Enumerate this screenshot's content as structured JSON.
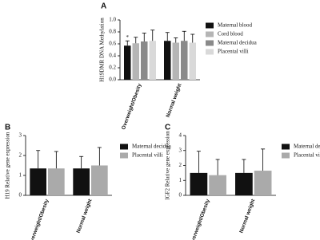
{
  "chart_data": [
    {
      "type": "bar",
      "panel_label": "A",
      "ylabel": "H19DMR DNA Methylation",
      "annotation": "*",
      "categories": [
        "Overweight/Obesity",
        "Normal weight"
      ],
      "series": [
        {
          "name": "Maternal blood",
          "color": "#111111",
          "values": [
            0.57,
            0.65
          ],
          "errors": [
            0.08,
            0.14
          ]
        },
        {
          "name": "Cord blood",
          "color": "#b5b5b5",
          "values": [
            0.61,
            0.62
          ],
          "errors": [
            0.1,
            0.08
          ]
        },
        {
          "name": "Maternal decidua",
          "color": "#8a8a8a",
          "values": [
            0.64,
            0.65
          ],
          "errors": [
            0.14,
            0.16
          ]
        },
        {
          "name": "Placental villi",
          "color": "#d9d9d9",
          "values": [
            0.65,
            0.62
          ],
          "errors": [
            0.18,
            0.14
          ]
        }
      ],
      "ylim": [
        0,
        1.0
      ],
      "yticks": [
        {
          "value": 0,
          "label": "0.0"
        },
        {
          "value": 0.2,
          "label": "0.2"
        },
        {
          "value": 0.4,
          "label": "0.4"
        },
        {
          "value": 0.6,
          "label": "0.6"
        },
        {
          "value": 0.8,
          "label": "0.8"
        },
        {
          "value": 1.0,
          "label": "1.0"
        }
      ]
    },
    {
      "type": "bar",
      "panel_label": "B",
      "ylabel": "H19 Relative gene expression",
      "categories": [
        "Overweight/Obesity",
        "Normal weight"
      ],
      "series": [
        {
          "name": "Maternal decidua",
          "color": "#111111",
          "values": [
            1.35,
            1.35
          ],
          "errors": [
            0.9,
            0.6
          ]
        },
        {
          "name": "Placental villi",
          "color": "#aaaaaa",
          "values": [
            1.35,
            1.5
          ],
          "errors": [
            0.85,
            0.9
          ]
        }
      ],
      "ylim": [
        0,
        3
      ],
      "yticks": [
        0,
        1,
        2,
        3
      ]
    },
    {
      "type": "bar",
      "panel_label": "C",
      "ylabel": "IGF2 Relative gene expression",
      "categories": [
        "Overweight/Obesity",
        "Normal weight"
      ],
      "series": [
        {
          "name": "Maternal decidua",
          "color": "#111111",
          "values": [
            1.5,
            1.5
          ],
          "errors": [
            1.45,
            0.9
          ]
        },
        {
          "name": "Placental villi",
          "color": "#aaaaaa",
          "values": [
            1.35,
            1.65
          ],
          "errors": [
            1.05,
            1.45
          ]
        }
      ],
      "ylim": [
        0,
        4
      ],
      "yticks": [
        0,
        1,
        2,
        3,
        4
      ]
    }
  ]
}
